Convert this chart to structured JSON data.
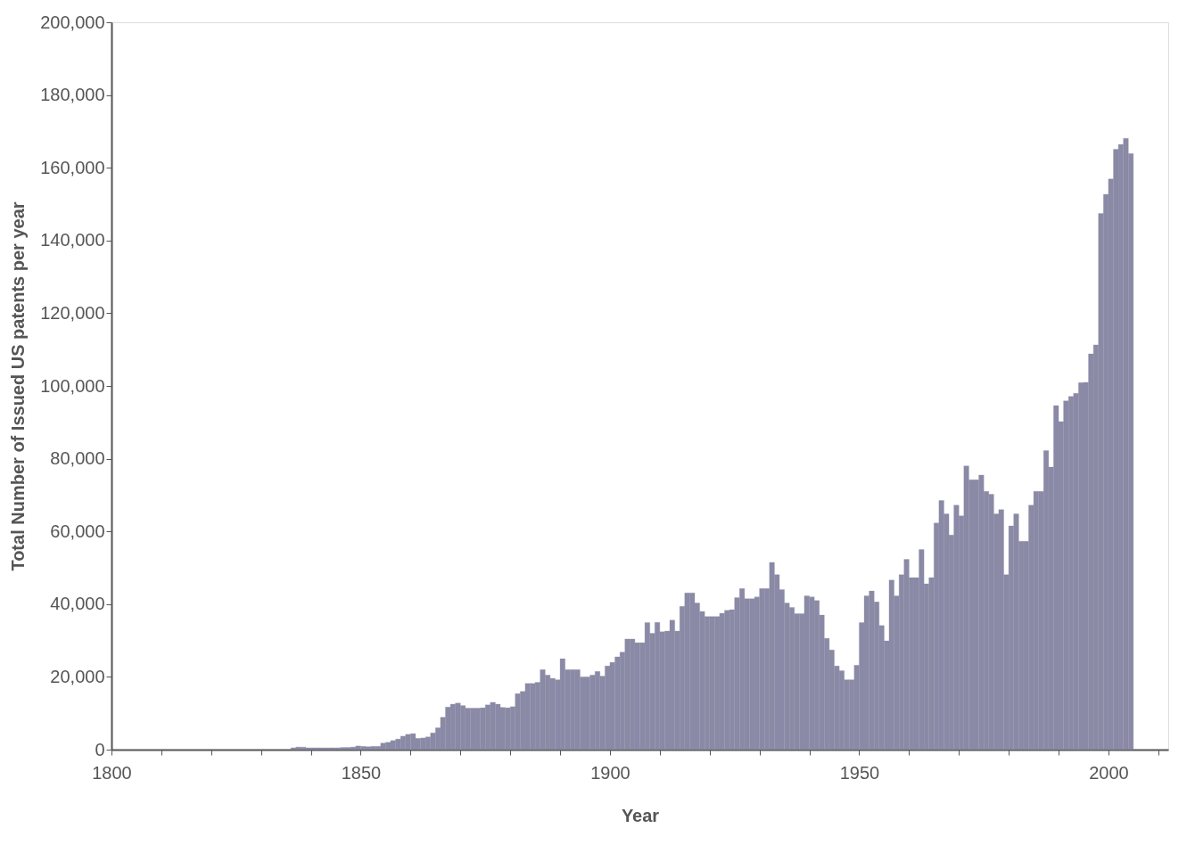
{
  "chart_data": {
    "type": "bar",
    "xlabel": "Year",
    "ylabel": "Total Number of Issued US patents per year",
    "grid": false,
    "xlim": [
      1800,
      2012
    ],
    "xticks": [
      1800,
      {
        "value": 1810,
        "label": null
      },
      {
        "value": 1820,
        "label": null
      },
      {
        "value": 1830,
        "label": null
      },
      {
        "value": 1840,
        "label": null
      },
      1850,
      {
        "value": 1860,
        "label": null
      },
      {
        "value": 1870,
        "label": null
      },
      {
        "value": 1880,
        "label": null
      },
      {
        "value": 1890,
        "label": null
      },
      1900,
      {
        "value": 1910,
        "label": null
      },
      {
        "value": 1920,
        "label": null
      },
      {
        "value": 1930,
        "label": null
      },
      {
        "value": 1940,
        "label": null
      },
      1950,
      {
        "value": 1960,
        "label": null
      },
      {
        "value": 1970,
        "label": null
      },
      {
        "value": 1980,
        "label": null
      },
      {
        "value": 1990,
        "label": null
      },
      2000,
      {
        "value": 2010,
        "label": null
      }
    ],
    "ylim": [
      0,
      200000
    ],
    "yticks": [
      0,
      {
        "value": 20000,
        "label": "20,000"
      },
      {
        "value": 40000,
        "label": "40,000"
      },
      {
        "value": 60000,
        "label": "60,000"
      },
      {
        "value": 80000,
        "label": "80,000"
      },
      {
        "value": 100000,
        "label": "100,000"
      },
      {
        "value": 120000,
        "label": "120,000"
      },
      {
        "value": 140000,
        "label": "140,000"
      },
      {
        "value": 160000,
        "label": "160,000"
      },
      {
        "value": 180000,
        "label": "180,000"
      },
      {
        "value": 200000,
        "label": "200,000"
      }
    ],
    "x": [
      1836,
      1837,
      1838,
      1839,
      1840,
      1841,
      1842,
      1843,
      1844,
      1845,
      1846,
      1847,
      1848,
      1849,
      1850,
      1851,
      1852,
      1853,
      1854,
      1855,
      1856,
      1857,
      1858,
      1859,
      1860,
      1861,
      1862,
      1863,
      1864,
      1865,
      1866,
      1867,
      1868,
      1869,
      1870,
      1871,
      1872,
      1873,
      1874,
      1875,
      1876,
      1877,
      1878,
      1879,
      1880,
      1881,
      1882,
      1883,
      1884,
      1885,
      1886,
      1887,
      1888,
      1889,
      1890,
      1891,
      1892,
      1893,
      1894,
      1895,
      1896,
      1897,
      1898,
      1899,
      1900,
      1901,
      1902,
      1903,
      1904,
      1905,
      1906,
      1907,
      1908,
      1909,
      1910,
      1911,
      1912,
      1913,
      1914,
      1915,
      1916,
      1917,
      1918,
      1919,
      1920,
      1921,
      1922,
      1923,
      1924,
      1925,
      1926,
      1927,
      1928,
      1929,
      1930,
      1931,
      1932,
      1933,
      1934,
      1935,
      1936,
      1937,
      1938,
      1939,
      1940,
      1941,
      1942,
      1943,
      1944,
      1945,
      1946,
      1947,
      1948,
      1949,
      1950,
      1951,
      1952,
      1953,
      1954,
      1955,
      1956,
      1957,
      1958,
      1959,
      1960,
      1961,
      1962,
      1963,
      1964,
      1965,
      1966,
      1967,
      1968,
      1969,
      1970,
      1971,
      1972,
      1973,
      1974,
      1975,
      1976,
      1977,
      1978,
      1979,
      1980,
      1981,
      1982,
      1983,
      1984,
      1985,
      1986,
      1987,
      1988,
      1989,
      1990,
      1991,
      1992,
      1993,
      1994,
      1995,
      1996,
      1997,
      1998,
      1999,
      2000,
      2001,
      2002,
      2003,
      2004
    ],
    "series": [
      {
        "color": "#8a8aa6",
        "values": [
          500,
          700,
          700,
          500,
          500,
          500,
          500,
          500,
          500,
          500,
          600,
          600,
          700,
          1000,
          900,
          800,
          900,
          900,
          1800,
          2000,
          2500,
          2900,
          3700,
          4200,
          4400,
          3100,
          3200,
          3500,
          4600,
          6000,
          8900,
          11700,
          12500,
          12800,
          12100,
          11400,
          11400,
          11400,
          11500,
          12300,
          13000,
          12500,
          11600,
          11500,
          11800,
          15400,
          16000,
          18200,
          18200,
          18500,
          22000,
          20500,
          19600,
          19200,
          25000,
          22000,
          22000,
          22000,
          20000,
          20000,
          20500,
          21500,
          20200,
          23000,
          24000,
          25500,
          26800,
          30400,
          30400,
          29400,
          29400,
          34900,
          32000,
          35000,
          32400,
          32600,
          35600,
          32600,
          39400,
          43100,
          43100,
          40300,
          38000,
          36600,
          36600,
          36600,
          37500,
          38300,
          38500,
          41800,
          44300,
          41500,
          41500,
          42000,
          44300,
          44300,
          51500,
          48100,
          44000,
          40300,
          39100,
          37400,
          37400,
          42300,
          42000,
          41000,
          37000,
          30600,
          27400,
          23000,
          21700,
          19200,
          19200,
          23200,
          34900,
          42300,
          43600,
          40600,
          34100,
          29900,
          46600,
          42300,
          48100,
          52300,
          47300,
          47300,
          55000,
          45600,
          47300,
          62300,
          68500,
          64800,
          59000,
          67200,
          64300,
          78000,
          74200,
          74200,
          75500,
          71000,
          70200,
          64800,
          66000,
          48100,
          61500,
          64800,
          57300,
          57300,
          67200,
          71000,
          71000,
          82200,
          77700,
          94600,
          90200,
          95900,
          97100,
          98000,
          100900,
          101000,
          108800,
          111300,
          147400,
          152700,
          156900,
          165100,
          166400,
          168100,
          163900
        ]
      }
    ]
  }
}
